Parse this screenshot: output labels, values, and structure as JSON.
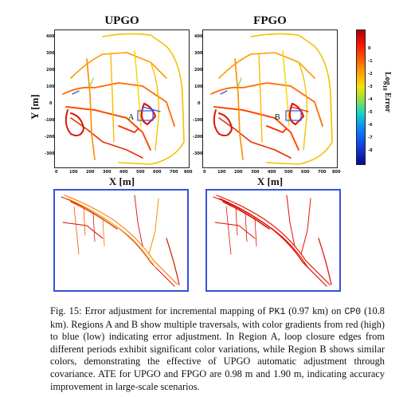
{
  "panels": {
    "left_title": "UPGO",
    "right_title": "FPGO",
    "xlabel": "X [m]",
    "ylabel": "Y [m]",
    "y_ticks": [
      "400",
      "300",
      "200",
      "100",
      "0",
      "-100",
      "-200",
      "-300"
    ],
    "x_ticks": [
      "0",
      "100",
      "200",
      "300",
      "400",
      "500",
      "600",
      "700",
      "800"
    ],
    "region_a": "A",
    "region_b": "B"
  },
  "colorbar": {
    "label": "Log10 Error",
    "label_prefix": "Log",
    "label_sub": "10",
    "label_suffix": " Error",
    "ticks": [
      "0",
      "-1",
      "-2",
      "-3",
      "-4",
      "-5",
      "-6",
      "-7",
      "-8"
    ],
    "colors": {
      "high": "#b00000",
      "mid": "#f4e400",
      "low": "#070a8a"
    }
  },
  "caption": {
    "fig": "Fig. 15:",
    "t1": "Error adjustment for incremental mapping of",
    "code1": "PK1",
    "t2": "(0.97 km) on",
    "code2": "CP0",
    "t3": "(10.8 km). Regions A and B show multiple traversals, with color gradients from red (high) to blue (low) indicating error adjustment. In Region A, loop closure edges from different periods exhibit significant color variations, while Region B shows similar colors, demonstrating the effective of UPGO automatic adjustment through covariance. ATE for UPGO and FPGO are",
    "ate1": "0.98 m",
    "t4": "and",
    "ate2": "1.90 m",
    "t5": ", indicating accuracy improvement in large-scale scenarios."
  },
  "accent": {
    "zoom_border": "#3552d8",
    "region_box": "#3552d8"
  }
}
